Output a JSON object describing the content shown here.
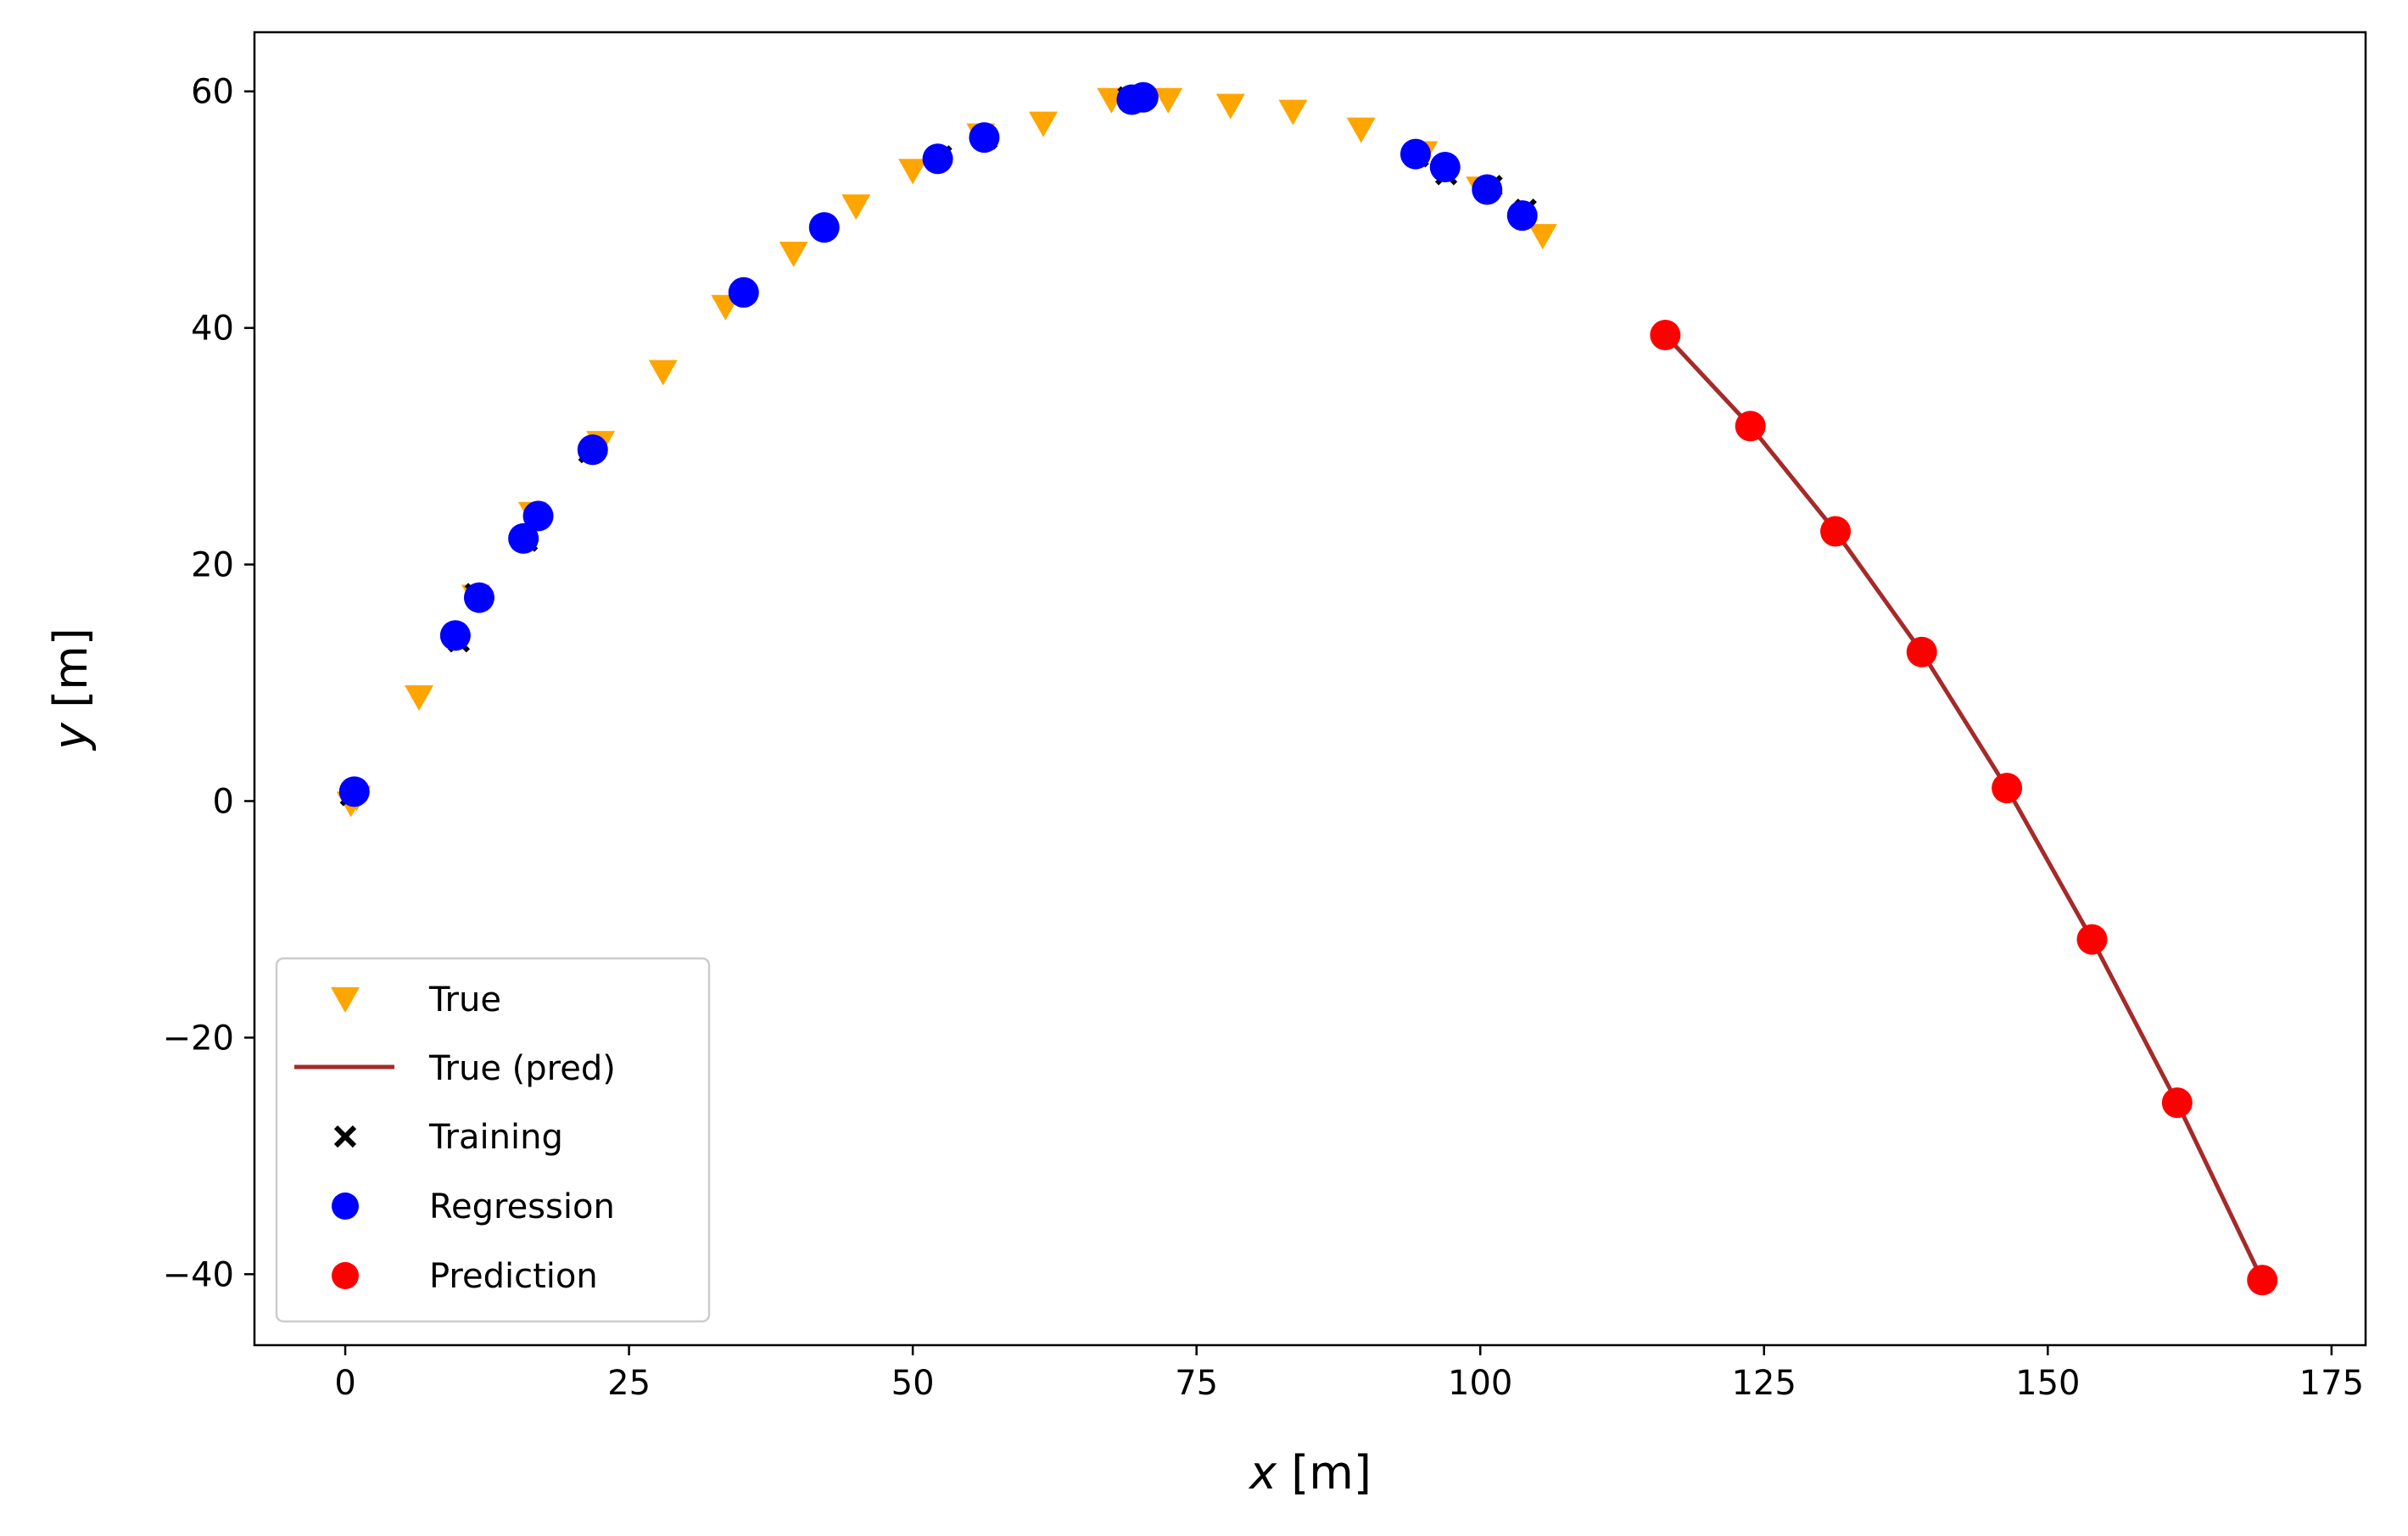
{
  "chart_data": {
    "type": "scatter",
    "title": "",
    "xlabel_var": "x",
    "xlabel_unit": " [m]",
    "ylabel_var": "y",
    "ylabel_unit": " [m]",
    "xlim": [
      -8,
      178
    ],
    "ylim": [
      -46,
      65
    ],
    "xticks": [
      0,
      25,
      50,
      75,
      100,
      125,
      150,
      175
    ],
    "yticks": [
      -40,
      -20,
      0,
      20,
      40,
      60
    ],
    "xtick_labels": [
      "0",
      "25",
      "50",
      "75",
      "100",
      "125",
      "150",
      "175"
    ],
    "ytick_labels": [
      "−40",
      "−20",
      "0",
      "20",
      "40",
      "60"
    ],
    "grid": false,
    "legend_position": "lower-left",
    "series": [
      {
        "name": "True",
        "marker": "triangle-down",
        "color": "#FFA500",
        "x": [
          0.5,
          1.0,
          6.5,
          11.5,
          16.5,
          22.5,
          28.0,
          33.5,
          39.5,
          45.0,
          50.0,
          56.0,
          61.5,
          67.5,
          72.5,
          78.0,
          83.5,
          89.5,
          95.0,
          100.0,
          105.5
        ],
        "y": [
          0.0,
          0.5,
          9.0,
          17.5,
          24.5,
          30.5,
          36.5,
          42.0,
          46.5,
          50.5,
          53.5,
          56.5,
          57.5,
          59.5,
          59.5,
          59.0,
          58.5,
          57.0,
          55.0,
          52.0,
          48.0
        ]
      },
      {
        "name": "True (pred)",
        "marker": "line",
        "color": "#A52A2A",
        "x": [
          116.3,
          123.8,
          131.3,
          138.9,
          146.4,
          153.9,
          161.4,
          168.9
        ],
        "y": [
          39.4,
          31.7,
          22.8,
          12.6,
          1.1,
          -11.7,
          -25.5,
          -40.5
        ]
      },
      {
        "name": "Training",
        "marker": "x",
        "color": "#000000",
        "x": [
          0.5,
          10.0,
          11.5,
          16.0,
          21.5,
          35.0,
          42.0,
          52.5,
          56.5,
          69.0,
          70.5,
          94.5,
          97.0,
          101.0,
          104.0
        ],
        "y": [
          0.5,
          13.5,
          17.5,
          22.0,
          29.5,
          43.0,
          48.5,
          54.5,
          56.0,
          59.5,
          59.5,
          54.5,
          53.0,
          52.0,
          50.0
        ]
      },
      {
        "name": "Regression",
        "marker": "circle",
        "color": "#0000FF",
        "x": [
          0.8,
          9.7,
          11.8,
          15.7,
          17.0,
          21.8,
          35.1,
          42.2,
          52.2,
          56.3,
          69.3,
          70.3,
          94.3,
          96.9,
          100.6,
          103.7
        ],
        "y": [
          0.8,
          14.0,
          17.2,
          22.2,
          24.1,
          29.7,
          43.0,
          48.5,
          54.3,
          56.1,
          59.3,
          59.5,
          54.7,
          53.6,
          51.7,
          49.5
        ]
      },
      {
        "name": "Prediction",
        "marker": "circle",
        "color": "#FF0000",
        "x": [
          116.3,
          123.8,
          131.3,
          138.9,
          146.4,
          153.9,
          161.4,
          168.9
        ],
        "y": [
          39.4,
          31.7,
          22.8,
          12.6,
          1.1,
          -11.7,
          -25.5,
          -40.5
        ]
      }
    ]
  }
}
